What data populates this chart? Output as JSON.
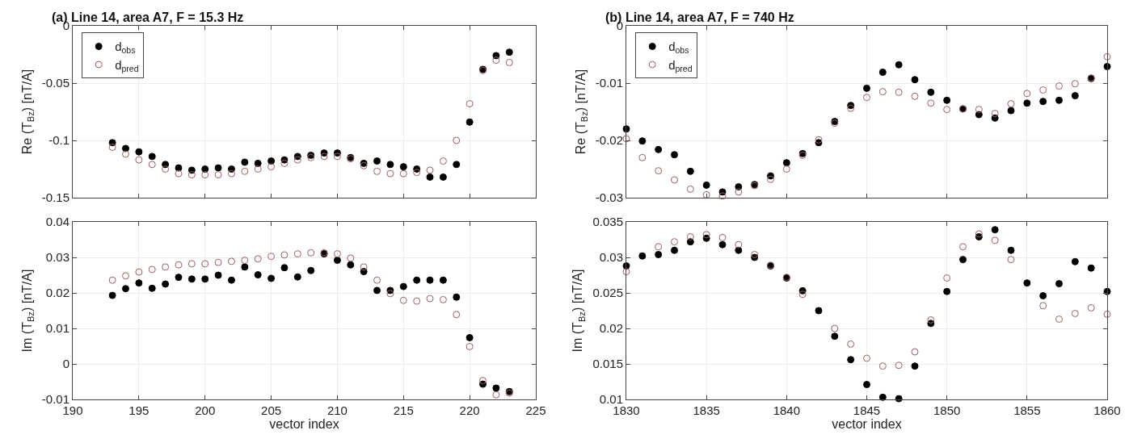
{
  "chart_data": [
    {
      "type": "scatter",
      "title": "(a) Line 14, area A7, F = 15.3 Hz",
      "ylabel": "Re (T$_{Bz}$) [nT/A]",
      "xlim": [
        190,
        225
      ],
      "xticks": [
        190,
        195,
        200,
        205,
        210,
        215,
        220,
        225
      ],
      "ylim": [
        -0.15,
        0
      ],
      "yticks": [
        -0.15,
        -0.1,
        -0.05,
        0
      ],
      "tick_labels": "y",
      "grid": true,
      "legend": "top left",
      "x": [
        193,
        194,
        195,
        196,
        197,
        198,
        199,
        200,
        201,
        202,
        203,
        204,
        205,
        206,
        207,
        208,
        209,
        210,
        211,
        212,
        213,
        214,
        215,
        216,
        217,
        218,
        219,
        220,
        221,
        222,
        223
      ],
      "series": [
        {
          "name": "d$_{obs}$",
          "color": "#000000",
          "marker": "circle",
          "values": [
            -0.102,
            -0.107,
            -0.11,
            -0.114,
            -0.121,
            -0.124,
            -0.126,
            -0.125,
            -0.124,
            -0.125,
            -0.119,
            -0.12,
            -0.118,
            -0.117,
            -0.114,
            -0.113,
            -0.111,
            -0.111,
            -0.115,
            -0.12,
            -0.118,
            -0.121,
            -0.123,
            -0.125,
            -0.132,
            -0.132,
            -0.121,
            -0.084,
            -0.038,
            -0.026,
            -0.023
          ]
        },
        {
          "name": "d$_{pred}$",
          "color": "#9a6060",
          "marker": "circle-open",
          "values": [
            -0.106,
            -0.112,
            -0.117,
            -0.121,
            -0.125,
            -0.129,
            -0.13,
            -0.13,
            -0.13,
            -0.129,
            -0.127,
            -0.125,
            -0.123,
            -0.12,
            -0.117,
            -0.115,
            -0.114,
            -0.114,
            -0.116,
            -0.122,
            -0.127,
            -0.129,
            -0.129,
            -0.128,
            -0.126,
            -0.118,
            -0.1,
            -0.068,
            -0.039,
            -0.03,
            -0.032
          ]
        }
      ]
    },
    {
      "type": "scatter",
      "title": "(b) Line 14, area A7, F = 740 Hz",
      "ylabel": "Re (T$_{Bz}$) [nT/A]",
      "xlim": [
        1830,
        1860
      ],
      "xticks": [
        1830,
        1835,
        1840,
        1845,
        1850,
        1855,
        1860
      ],
      "ylim": [
        -0.03,
        0
      ],
      "yticks": [
        -0.03,
        -0.02,
        -0.01,
        0
      ],
      "tick_labels": "y",
      "grid": true,
      "legend": "top left",
      "x": [
        1830,
        1831,
        1832,
        1833,
        1834,
        1835,
        1836,
        1837,
        1838,
        1839,
        1840,
        1841,
        1842,
        1843,
        1844,
        1845,
        1846,
        1847,
        1848,
        1849,
        1850,
        1851,
        1852,
        1853,
        1854,
        1855,
        1856,
        1857,
        1858,
        1859,
        1860
      ],
      "series": [
        {
          "name": "d$_{obs}$",
          "color": "#000000",
          "marker": "circle",
          "values": [
            -0.018,
            -0.0201,
            -0.0216,
            -0.0225,
            -0.0254,
            -0.0278,
            -0.029,
            -0.0281,
            -0.0277,
            -0.0262,
            -0.0239,
            -0.0223,
            -0.0204,
            -0.0167,
            -0.0139,
            -0.0109,
            -0.0081,
            -0.0068,
            -0.0094,
            -0.0116,
            -0.013,
            -0.0145,
            -0.0155,
            -0.0161,
            -0.0148,
            -0.0135,
            -0.0132,
            -0.013,
            -0.0122,
            -0.0092,
            -0.0071
          ]
        },
        {
          "name": "d$_{pred}$",
          "color": "#9a6060",
          "marker": "circle-open",
          "values": [
            -0.0197,
            -0.023,
            -0.0253,
            -0.0269,
            -0.0285,
            -0.0295,
            -0.0297,
            -0.029,
            -0.0279,
            -0.0268,
            -0.025,
            -0.0226,
            -0.0199,
            -0.017,
            -0.0144,
            -0.0125,
            -0.0115,
            -0.0116,
            -0.0123,
            -0.0135,
            -0.0146,
            -0.0145,
            -0.0146,
            -0.0153,
            -0.0136,
            -0.0118,
            -0.0112,
            -0.0105,
            -0.0101,
            -0.0091,
            -0.0054
          ]
        }
      ]
    },
    {
      "type": "scatter",
      "xlabel": "vector index",
      "ylabel": "Im (T$_{Bz}$) [nT/A]",
      "xlim": [
        190,
        225
      ],
      "xticks": [
        190,
        195,
        200,
        205,
        210,
        215,
        220,
        225
      ],
      "ylim": [
        -0.01,
        0.04
      ],
      "yticks": [
        -0.01,
        0,
        0.01,
        0.02,
        0.03,
        0.04
      ],
      "grid": true,
      "x": [
        193,
        194,
        195,
        196,
        197,
        198,
        199,
        200,
        201,
        202,
        203,
        204,
        205,
        206,
        207,
        208,
        209,
        210,
        211,
        212,
        213,
        214,
        215,
        216,
        217,
        218,
        219,
        220,
        221,
        222,
        223
      ],
      "series": [
        {
          "color": "#000000",
          "marker": "circle",
          "values": [
            0.0193,
            0.0212,
            0.0228,
            0.0213,
            0.0225,
            0.0244,
            0.0239,
            0.0239,
            0.025,
            0.0236,
            0.0273,
            0.0251,
            0.0241,
            0.0271,
            0.0245,
            0.0263,
            0.031,
            0.0292,
            0.0279,
            0.026,
            0.0207,
            0.0207,
            0.0218,
            0.0236,
            0.0236,
            0.0236,
            0.0188,
            0.0074,
            -0.0057,
            -0.0068,
            -0.0078
          ]
        },
        {
          "color": "#9a6060",
          "marker": "circle-open",
          "values": [
            0.0236,
            0.0248,
            0.0259,
            0.0266,
            0.0273,
            0.0279,
            0.0282,
            0.0282,
            0.0286,
            0.0289,
            0.0292,
            0.0296,
            0.0303,
            0.0307,
            0.031,
            0.0313,
            0.0313,
            0.031,
            0.0298,
            0.0273,
            0.0236,
            0.0198,
            0.0179,
            0.0177,
            0.0184,
            0.0181,
            0.0139,
            0.0049,
            -0.0047,
            -0.0087,
            -0.0082
          ]
        }
      ]
    },
    {
      "type": "scatter",
      "xlabel": "vector index",
      "ylabel": "Im (T$_{Bz}$) [nT/A]",
      "xlim": [
        1830,
        1860
      ],
      "xticks": [
        1830,
        1835,
        1840,
        1845,
        1850,
        1855,
        1860
      ],
      "ylim": [
        0.01,
        0.035
      ],
      "yticks": [
        0.01,
        0.015,
        0.02,
        0.025,
        0.03,
        0.035
      ],
      "grid": true,
      "x": [
        1830,
        1831,
        1832,
        1833,
        1834,
        1835,
        1836,
        1837,
        1838,
        1839,
        1840,
        1841,
        1842,
        1843,
        1844,
        1845,
        1846,
        1847,
        1848,
        1849,
        1850,
        1851,
        1852,
        1853,
        1854,
        1855,
        1856,
        1857,
        1858,
        1859,
        1860
      ],
      "series": [
        {
          "color": "#000000",
          "marker": "circle",
          "values": [
            0.0288,
            0.0302,
            0.0304,
            0.031,
            0.0322,
            0.0327,
            0.0318,
            0.031,
            0.03,
            0.0288,
            0.0271,
            0.0253,
            0.0225,
            0.0189,
            0.0156,
            0.0121,
            0.0103,
            0.0101,
            0.0147,
            0.0207,
            0.0252,
            0.0297,
            0.0329,
            0.0339,
            0.031,
            0.0264,
            0.0246,
            0.0263,
            0.0294,
            0.0285,
            0.0252
          ]
        },
        {
          "color": "#9a6060",
          "marker": "circle-open",
          "values": [
            0.028,
            null,
            0.0315,
            0.0322,
            0.0329,
            0.0332,
            0.0328,
            0.0318,
            0.0304,
            0.0289,
            0.0272,
            0.0248,
            null,
            0.02,
            0.0178,
            0.0158,
            0.0147,
            0.0148,
            0.0167,
            0.0212,
            0.0271,
            0.0315,
            0.0333,
            0.0324,
            0.0297,
            null,
            0.0232,
            0.0213,
            0.0221,
            0.0229,
            0.022
          ]
        }
      ]
    }
  ]
}
